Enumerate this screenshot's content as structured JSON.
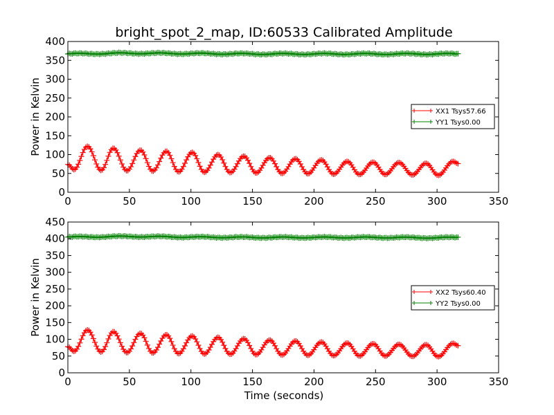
{
  "title": "bright_spot_2_map, ID:60533 Calibrated Amplitude",
  "chart_data": [
    {
      "type": "line",
      "panel": "top",
      "title": "bright_spot_2_map, ID:60533 Calibrated Amplitude",
      "xlabel": "",
      "ylabel": "Power in Kelvin",
      "xlim": [
        0,
        350
      ],
      "ylim": [
        0,
        400
      ],
      "xticks": [
        0,
        50,
        100,
        150,
        200,
        250,
        300,
        350
      ],
      "yticks": [
        0,
        50,
        100,
        150,
        200,
        250,
        300,
        350,
        400
      ],
      "grid": false,
      "legend_position": "center-right",
      "marker": "plus",
      "series": [
        {
          "name": "XX1 Tsys57.66",
          "color": "#ff0000",
          "shape": "periodic",
          "x_range": [
            0,
            317
          ],
          "period": 21.2,
          "peaks": [
            [
              16,
              122
            ],
            [
              37,
              117
            ],
            [
              59,
              112
            ],
            [
              80,
              109
            ],
            [
              101,
              106
            ],
            [
              122,
              100
            ],
            [
              143,
              96
            ],
            [
              164,
              92
            ],
            [
              185,
              89
            ],
            [
              206,
              86
            ],
            [
              227,
              82
            ],
            [
              248,
              80
            ],
            [
              269,
              79
            ],
            [
              291,
              77
            ],
            [
              313,
              82
            ]
          ],
          "troughs": [
            [
              5,
              60
            ],
            [
              27,
              58
            ],
            [
              48,
              57
            ],
            [
              69,
              56
            ],
            [
              90,
              54
            ],
            [
              111,
              53
            ],
            [
              132,
              52
            ],
            [
              153,
              51
            ],
            [
              174,
              50
            ],
            [
              195,
              49
            ],
            [
              216,
              48
            ],
            [
              237,
              47
            ],
            [
              258,
              47
            ],
            [
              280,
              46
            ],
            [
              301,
              45
            ]
          ],
          "end_value": 76
        },
        {
          "name": "YY1 Tsys0.00",
          "color": "#008000",
          "shape": "flat",
          "x_range": [
            0,
            317
          ],
          "values_sampled_x": [
            0,
            50,
            100,
            150,
            200,
            250,
            300,
            317
          ],
          "values": [
            367,
            369,
            368,
            367,
            367,
            367,
            367,
            367
          ]
        }
      ]
    },
    {
      "type": "line",
      "panel": "bottom",
      "title": "",
      "xlabel": "Time (seconds)",
      "ylabel": "Power in Kelvin",
      "xlim": [
        0,
        350
      ],
      "ylim": [
        0,
        450
      ],
      "xticks": [
        0,
        50,
        100,
        150,
        200,
        250,
        300,
        350
      ],
      "yticks": [
        0,
        50,
        100,
        150,
        200,
        250,
        300,
        350,
        400,
        450
      ],
      "grid": false,
      "legend_position": "center-right",
      "marker": "plus",
      "series": [
        {
          "name": "XX2 Tsys60.40",
          "color": "#ff0000",
          "shape": "periodic",
          "x_range": [
            0,
            317
          ],
          "period": 21.2,
          "peaks": [
            [
              16,
              128
            ],
            [
              37,
              123
            ],
            [
              59,
              118
            ],
            [
              80,
              114
            ],
            [
              101,
              110
            ],
            [
              122,
              106
            ],
            [
              143,
              102
            ],
            [
              164,
              98
            ],
            [
              185,
              95
            ],
            [
              206,
              92
            ],
            [
              227,
              89
            ],
            [
              248,
              87
            ],
            [
              269,
              85
            ],
            [
              291,
              84
            ],
            [
              313,
              88
            ]
          ],
          "troughs": [
            [
              5,
              64
            ],
            [
              27,
              62
            ],
            [
              48,
              60
            ],
            [
              69,
              59
            ],
            [
              90,
              57
            ],
            [
              111,
              56
            ],
            [
              132,
              55
            ],
            [
              153,
              54
            ],
            [
              174,
              53
            ],
            [
              195,
              52
            ],
            [
              216,
              51
            ],
            [
              237,
              50
            ],
            [
              258,
              50
            ],
            [
              280,
              49
            ],
            [
              301,
              48
            ]
          ],
          "end_value": 81
        },
        {
          "name": "YY2 Tsys0.00",
          "color": "#008000",
          "shape": "flat",
          "x_range": [
            0,
            317
          ],
          "values_sampled_x": [
            0,
            50,
            100,
            150,
            200,
            250,
            300,
            317
          ],
          "values": [
            405,
            407,
            405,
            404,
            404,
            404,
            403,
            404
          ]
        }
      ]
    }
  ]
}
